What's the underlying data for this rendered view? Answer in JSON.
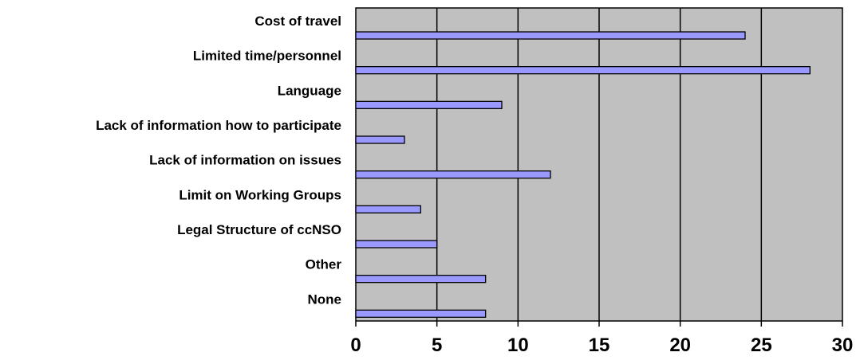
{
  "chart_data": {
    "type": "bar",
    "orientation": "horizontal",
    "categories": [
      "Cost of travel",
      "Limited time/personnel",
      "Language",
      "Lack of information how to participate",
      "Lack of information on issues",
      "Limit on Working Groups",
      "Legal Structure of ccNSO",
      "Other",
      "None"
    ],
    "values": [
      24,
      28,
      9,
      3,
      12,
      4,
      5,
      8,
      8
    ],
    "xlim": [
      0,
      30
    ],
    "xticks": [
      0,
      5,
      10,
      15,
      20,
      25,
      30
    ],
    "grid": "vertical",
    "legend": "none",
    "colors": {
      "bar_fill": "#9999ff",
      "bar_stroke": "#000000",
      "plot_background": "#c0c0c0",
      "gridline": "#000000"
    }
  }
}
